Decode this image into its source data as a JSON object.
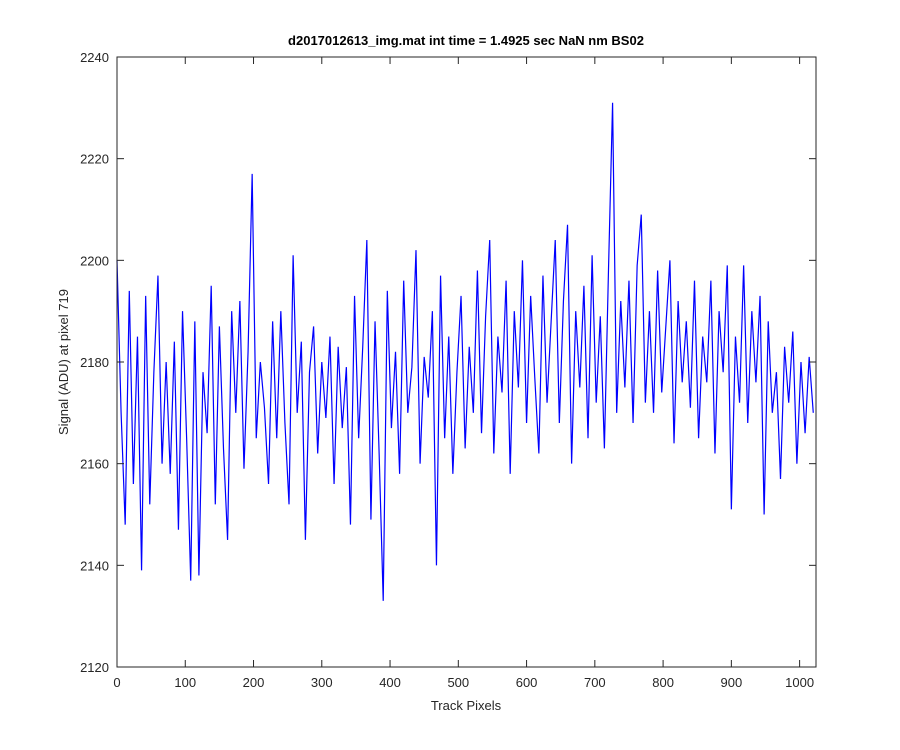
{
  "chart_data": {
    "type": "line",
    "title": "d2017012613_img.mat int time = 1.4925 sec  NaN nm BS02",
    "xlabel": "Track Pixels",
    "ylabel": "Signal (ADU) at pixel 719",
    "xlim": [
      0,
      1024
    ],
    "ylim": [
      2120,
      2240
    ],
    "xticks": [
      0,
      100,
      200,
      300,
      400,
      500,
      600,
      700,
      800,
      900,
      1000
    ],
    "yticks": [
      2120,
      2140,
      2160,
      2180,
      2200,
      2220,
      2240
    ],
    "x": [
      0,
      6,
      12,
      18,
      24,
      30,
      36,
      42,
      48,
      54,
      60,
      66,
      72,
      78,
      84,
      90,
      96,
      102,
      108,
      114,
      120,
      126,
      132,
      138,
      144,
      150,
      156,
      162,
      168,
      174,
      180,
      186,
      192,
      198,
      204,
      210,
      216,
      222,
      228,
      234,
      240,
      246,
      252,
      258,
      264,
      270,
      276,
      282,
      288,
      294,
      300,
      306,
      312,
      318,
      324,
      330,
      336,
      342,
      348,
      354,
      360,
      366,
      372,
      378,
      384,
      390,
      396,
      402,
      408,
      414,
      420,
      426,
      432,
      438,
      444,
      450,
      456,
      462,
      468,
      474,
      480,
      486,
      492,
      498,
      504,
      510,
      516,
      522,
      528,
      534,
      540,
      546,
      552,
      558,
      564,
      570,
      576,
      582,
      588,
      594,
      600,
      606,
      612,
      618,
      624,
      630,
      636,
      642,
      648,
      654,
      660,
      666,
      672,
      678,
      684,
      690,
      696,
      702,
      708,
      714,
      720,
      726,
      732,
      738,
      744,
      750,
      756,
      762,
      768,
      774,
      780,
      786,
      792,
      798,
      804,
      810,
      816,
      822,
      828,
      834,
      840,
      846,
      852,
      858,
      864,
      870,
      876,
      882,
      888,
      894,
      900,
      906,
      912,
      918,
      924,
      930,
      936,
      942,
      948,
      954,
      960,
      966,
      972,
      978,
      984,
      990,
      996,
      1002,
      1008,
      1014,
      1020
    ],
    "series": [
      {
        "color": "#0000ff",
        "values": [
          2200,
          2170,
          2148,
          2194,
          2156,
          2185,
          2139,
          2193,
          2152,
          2178,
          2197,
          2160,
          2180,
          2158,
          2184,
          2147,
          2190,
          2165,
          2137,
          2188,
          2138,
          2178,
          2166,
          2195,
          2152,
          2187,
          2163,
          2145,
          2190,
          2170,
          2192,
          2159,
          2182,
          2217,
          2165,
          2180,
          2171,
          2156,
          2188,
          2165,
          2190,
          2168,
          2152,
          2201,
          2170,
          2184,
          2145,
          2178,
          2187,
          2162,
          2180,
          2169,
          2185,
          2156,
          2183,
          2167,
          2179,
          2148,
          2193,
          2165,
          2183,
          2204,
          2149,
          2188,
          2162,
          2133,
          2194,
          2167,
          2182,
          2158,
          2196,
          2170,
          2179,
          2202,
          2160,
          2181,
          2173,
          2190,
          2140,
          2197,
          2165,
          2185,
          2158,
          2178,
          2193,
          2163,
          2183,
          2170,
          2198,
          2166,
          2189,
          2204,
          2162,
          2185,
          2174,
          2196,
          2158,
          2190,
          2175,
          2200,
          2168,
          2193,
          2177,
          2162,
          2197,
          2172,
          2188,
          2204,
          2168,
          2192,
          2207,
          2160,
          2190,
          2175,
          2195,
          2165,
          2201,
          2172,
          2189,
          2163,
          2198,
          2231,
          2170,
          2192,
          2175,
          2196,
          2168,
          2199,
          2209,
          2172,
          2190,
          2170,
          2198,
          2174,
          2187,
          2200,
          2164,
          2192,
          2176,
          2188,
          2171,
          2196,
          2165,
          2185,
          2176,
          2196,
          2162,
          2190,
          2178,
          2199,
          2151,
          2185,
          2172,
          2199,
          2168,
          2190,
          2176,
          2193,
          2150,
          2188,
          2170,
          2178,
          2157,
          2183,
          2172,
          2186,
          2160,
          2180,
          2166,
          2181,
          2170
        ]
      }
    ]
  }
}
